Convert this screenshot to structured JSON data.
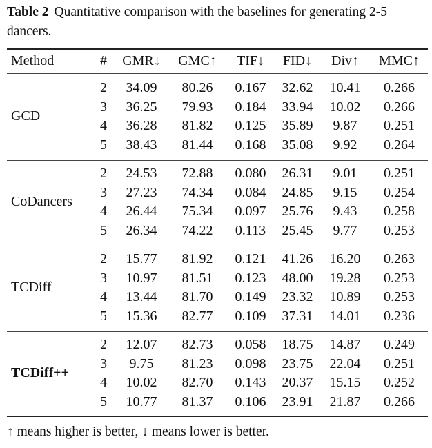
{
  "caption": {
    "label": "Table 2",
    "text": "Quantitative comparison with the baselines for generating 2-5 dancers."
  },
  "headers": [
    "Method",
    "#",
    "GMR↓",
    "GMC↑",
    "TIF↓",
    "FID↓",
    "Div↑",
    "MMC↑"
  ],
  "groups": [
    {
      "method": "GCD",
      "bold": false,
      "rows": [
        [
          "2",
          "34.09",
          "80.26",
          "0.167",
          "32.62",
          "10.41",
          "0.266"
        ],
        [
          "3",
          "36.25",
          "79.93",
          "0.184",
          "33.94",
          "10.02",
          "0.266"
        ],
        [
          "4",
          "36.28",
          "81.82",
          "0.125",
          "35.89",
          "9.87",
          "0.251"
        ],
        [
          "5",
          "38.43",
          "81.44",
          "0.168",
          "35.08",
          "9.92",
          "0.264"
        ]
      ]
    },
    {
      "method": "CoDancers",
      "bold": false,
      "rows": [
        [
          "2",
          "24.53",
          "72.88",
          "0.080",
          "26.31",
          "9.01",
          "0.251"
        ],
        [
          "3",
          "27.23",
          "74.34",
          "0.084",
          "24.85",
          "9.15",
          "0.254"
        ],
        [
          "4",
          "26.44",
          "75.34",
          "0.097",
          "25.76",
          "9.43",
          "0.258"
        ],
        [
          "5",
          "26.34",
          "74.22",
          "0.113",
          "25.45",
          "9.77",
          "0.253"
        ]
      ]
    },
    {
      "method": "TCDiff",
      "bold": false,
      "rows": [
        [
          "2",
          "15.77",
          "81.92",
          "0.121",
          "41.26",
          "16.20",
          "0.263"
        ],
        [
          "3",
          "10.97",
          "81.51",
          "0.123",
          "48.00",
          "19.28",
          "0.253"
        ],
        [
          "4",
          "13.44",
          "81.70",
          "0.149",
          "23.32",
          "10.89",
          "0.253"
        ],
        [
          "5",
          "15.36",
          "82.77",
          "0.109",
          "37.31",
          "14.01",
          "0.236"
        ]
      ]
    },
    {
      "method": "TCDiff++",
      "bold": true,
      "rows": [
        [
          "2",
          "12.07",
          "82.73",
          "0.058",
          "18.75",
          "14.87",
          "0.249"
        ],
        [
          "3",
          "9.75",
          "81.23",
          "0.098",
          "23.75",
          "22.04",
          "0.251"
        ],
        [
          "4",
          "10.02",
          "82.70",
          "0.143",
          "20.37",
          "15.15",
          "0.252"
        ],
        [
          "5",
          "10.77",
          "81.37",
          "0.106",
          "23.91",
          "21.87",
          "0.266"
        ]
      ]
    }
  ],
  "footnote": "↑ means higher is better, ↓ means lower is better."
}
